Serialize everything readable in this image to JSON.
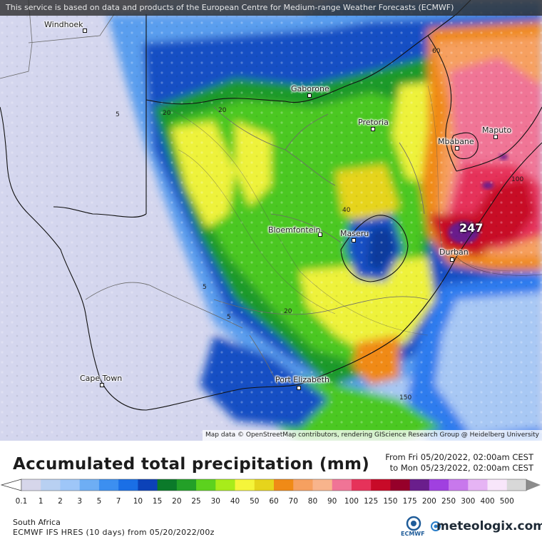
{
  "notice": "This service is based on data and products of the European Centre for Medium-range Weather Forecasts (ECMWF)",
  "attribution": "Map data © OpenStreetMap contributors, rendering GIScience Research Group @ Heidelberg University",
  "cities": {
    "windhoek": "Windhoek",
    "gaborone": "Gaborone",
    "pretoria": "Pretoria",
    "maputo": "Maputo",
    "mbabane": "Mbabane",
    "bloemfontein": "Bloemfontein",
    "maseru": "Maseru",
    "durban": "Durban",
    "cape_town": "Cape Town",
    "port_elizabeth": "Port Elizabeth"
  },
  "max_value": "247",
  "isolines": [
    "5",
    "20",
    "40",
    "60",
    "100",
    "150"
  ],
  "legend": {
    "title": "Accumulated total precipitation (mm)",
    "from_label": "From",
    "from_value": "Fri 05/20/2022, 02:00am CEST",
    "to_label": "to",
    "to_value": "Mon 05/23/2022, 02:00am CEST",
    "scale_labels": [
      "0.1",
      "1",
      "2",
      "3",
      "5",
      "7",
      "10",
      "15",
      "20",
      "25",
      "30",
      "40",
      "50",
      "60",
      "70",
      "80",
      "90",
      "100",
      "125",
      "150",
      "175",
      "200",
      "250",
      "300",
      "400",
      "500"
    ],
    "scale_colors": [
      "#d6d6ea",
      "#b8d0f2",
      "#9ec6f8",
      "#6eaef4",
      "#3c8ff0",
      "#1a6fe6",
      "#0c42b8",
      "#0b7a2a",
      "#23a028",
      "#5cd21e",
      "#a8ec1a",
      "#f5f53a",
      "#e6d41c",
      "#f08a16",
      "#f6a060",
      "#f8b48c",
      "#f07496",
      "#e6325a",
      "#c80a28",
      "#96002a",
      "#6a1e8c",
      "#a040e0",
      "#c878ec",
      "#e6b4f4",
      "#f8e6fa",
      "#d8d8d8",
      "#8c8c8c"
    ],
    "region": "South Africa",
    "model": "ECMWF IFS HRES (10 days) from 05/20/2022/00z",
    "ecmwf": "ECMWF",
    "brand": "meteologix.com"
  }
}
